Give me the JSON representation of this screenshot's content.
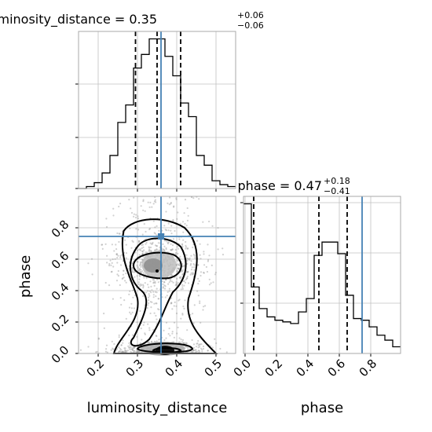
{
  "chart_data": {
    "type": "corner",
    "colors": {
      "truth": "#4682b4",
      "hist": "#000000",
      "grid": "#c0c0c0",
      "scatter": "#999999"
    },
    "parameters": [
      "luminosity_distance",
      "phase"
    ],
    "truths": {
      "luminosity_distance": 0.36,
      "phase": 0.745
    },
    "luminosity_distance_marginal": {
      "title": {
        "main": "luminosity_distance = 0.35",
        "sup": "+0.06",
        "sub": "−0.06"
      },
      "xlim": [
        0.15,
        0.55
      ],
      "bin_edges": [
        0.15,
        0.17,
        0.19,
        0.21,
        0.23,
        0.25,
        0.27,
        0.29,
        0.31,
        0.33,
        0.35,
        0.37,
        0.39,
        0.41,
        0.43,
        0.45,
        0.47,
        0.49,
        0.51,
        0.53,
        0.55
      ],
      "counts": [
        0,
        1,
        3,
        8,
        17,
        34,
        43,
        62,
        69,
        77,
        77,
        68,
        58,
        44,
        37,
        17,
        12,
        4,
        2,
        1
      ],
      "quantiles": [
        0.295,
        0.35,
        0.41
      ]
    },
    "phase_marginal": {
      "title": {
        "main": "phase = 0.47",
        "sup": "+0.18",
        "sub": "−0.41"
      },
      "xlim": [
        -0.01,
        0.99
      ],
      "bin_edges": [
        -0.01,
        0.04,
        0.09,
        0.14,
        0.19,
        0.24,
        0.29,
        0.34,
        0.39,
        0.44,
        0.49,
        0.54,
        0.59,
        0.64,
        0.69,
        0.74,
        0.79,
        0.84,
        0.89,
        0.94,
        0.99
      ],
      "counts": [
        90,
        40,
        27,
        22,
        20,
        19,
        18,
        25,
        33,
        59,
        67,
        67,
        60,
        35,
        21,
        20,
        16,
        11,
        8,
        4
      ],
      "quantiles": [
        0.055,
        0.47,
        0.65
      ],
      "xticks": [
        "0.0",
        "0.2",
        "0.4",
        "0.6",
        "0.8"
      ]
    },
    "joint": {
      "xlim": [
        0.15,
        0.55
      ],
      "ylim": [
        0.0,
        1.0
      ],
      "xticks": [
        "0.2",
        "0.3",
        "0.4",
        "0.5"
      ],
      "yticks": [
        "0.0",
        "0.2",
        "0.4",
        "0.6",
        "0.8"
      ],
      "xlabel": "luminosity_distance",
      "ylabel": "phase",
      "max_point": [
        0.35,
        0.525
      ]
    },
    "grid": true
  }
}
